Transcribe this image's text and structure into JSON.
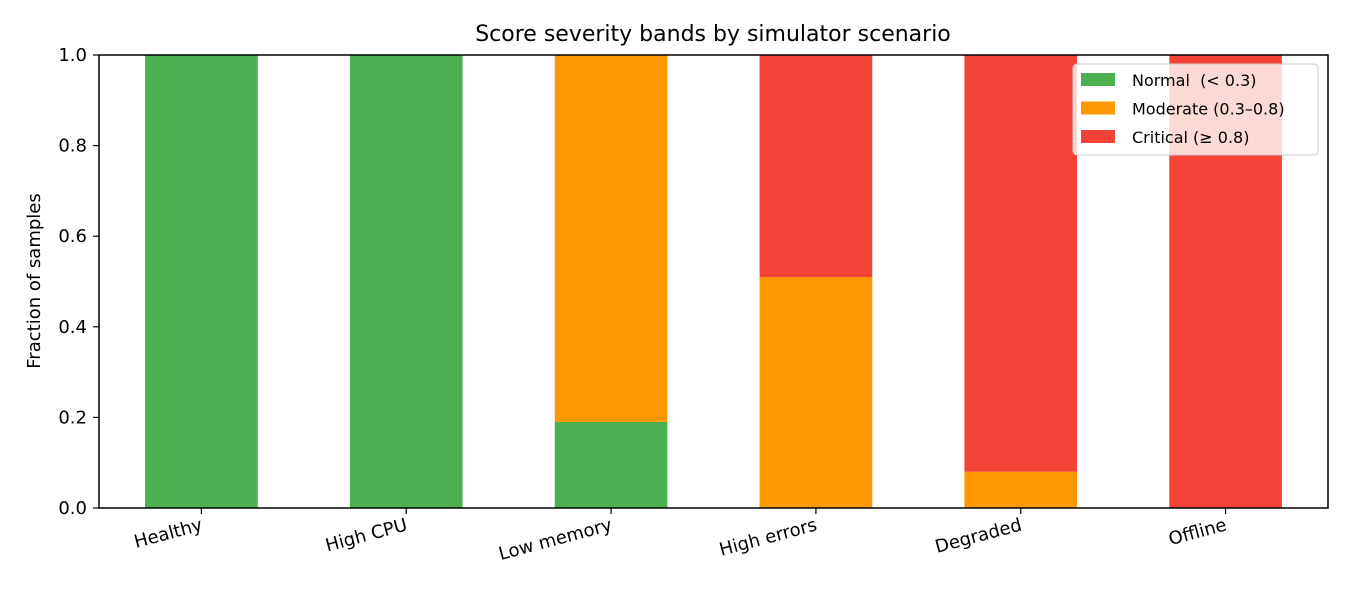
{
  "chart_data": {
    "type": "bar",
    "stacked": true,
    "title": "Score severity bands by simulator scenario",
    "xlabel": "",
    "ylabel": "Fraction of samples",
    "ylim": [
      0,
      1.0
    ],
    "yticks": [
      "0.0",
      "0.2",
      "0.4",
      "0.6",
      "0.8",
      "1.0"
    ],
    "categories": [
      "Healthy",
      "High CPU",
      "Low memory",
      "High errors",
      "Degraded",
      "Offline"
    ],
    "series": [
      {
        "name": "Normal  (< 0.3)",
        "color": "#4caf50",
        "values": [
          1.0,
          1.0,
          0.19,
          0.0,
          0.0,
          0.0
        ]
      },
      {
        "name": "Moderate (0.3–0.8)",
        "color": "#ff9800",
        "values": [
          0.0,
          0.0,
          0.81,
          0.51,
          0.08,
          0.0
        ]
      },
      {
        "name": "Critical (≥ 0.8)",
        "color": "#f44336",
        "values": [
          0.0,
          0.0,
          0.0,
          0.49,
          0.92,
          1.0
        ]
      }
    ],
    "grid": false,
    "legend_position": "top-right"
  }
}
